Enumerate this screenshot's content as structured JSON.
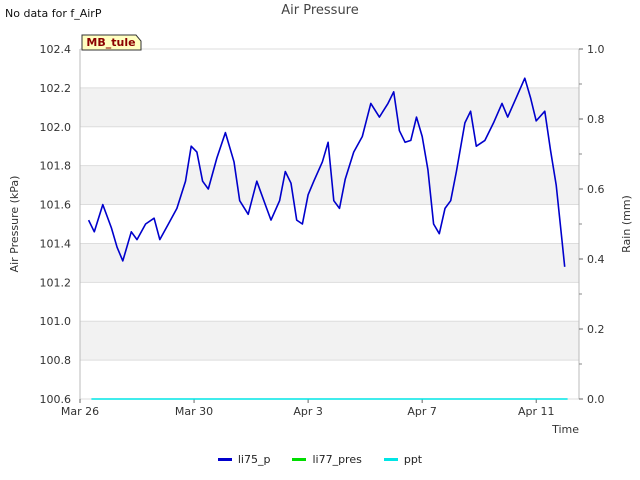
{
  "header": {
    "no_data": "No data for f_AirP"
  },
  "chart_data": {
    "type": "line",
    "title": "Air Pressure",
    "station_label": "MB_tule",
    "xlabel": "Time",
    "ylabel": "Air Pressure (kPa)",
    "y2label": "Rain (mm)",
    "x_range_days": [
      0,
      17.5
    ],
    "x_tick_days": [
      0,
      4,
      8,
      12,
      16
    ],
    "x_tick_labels": [
      "Mar 26",
      "Mar 30",
      "Apr 3",
      "Apr 7",
      "Apr 11"
    ],
    "ylim": [
      100.6,
      102.4
    ],
    "y_ticks": [
      100.6,
      100.8,
      101.0,
      101.2,
      101.4,
      101.6,
      101.8,
      102.0,
      102.2,
      102.4
    ],
    "y_tick_labels": [
      "100.6",
      "100.8",
      "101.0",
      "101.2",
      "101.4",
      "101.6",
      "101.8",
      "102.0",
      "102.2",
      "102.4"
    ],
    "y2lim": [
      0.0,
      1.0
    ],
    "y2_ticks": [
      0.0,
      0.2,
      0.4,
      0.6,
      0.8,
      1.0
    ],
    "y2_tick_labels": [
      "0.0",
      "0.2",
      "0.4",
      "0.6",
      "0.8",
      "1.0"
    ],
    "series": [
      {
        "name": "li75_p",
        "color": "#0000cc",
        "axis": "left",
        "points": [
          [
            0.3,
            101.52
          ],
          [
            0.5,
            101.46
          ],
          [
            0.8,
            101.6
          ],
          [
            1.1,
            101.48
          ],
          [
            1.3,
            101.38
          ],
          [
            1.5,
            101.31
          ],
          [
            1.8,
            101.46
          ],
          [
            2.0,
            101.42
          ],
          [
            2.3,
            101.5
          ],
          [
            2.6,
            101.53
          ],
          [
            2.8,
            101.42
          ],
          [
            3.1,
            101.5
          ],
          [
            3.4,
            101.58
          ],
          [
            3.7,
            101.72
          ],
          [
            3.9,
            101.9
          ],
          [
            4.1,
            101.87
          ],
          [
            4.3,
            101.72
          ],
          [
            4.5,
            101.68
          ],
          [
            4.8,
            101.84
          ],
          [
            5.1,
            101.97
          ],
          [
            5.4,
            101.82
          ],
          [
            5.6,
            101.62
          ],
          [
            5.9,
            101.55
          ],
          [
            6.2,
            101.72
          ],
          [
            6.5,
            101.6
          ],
          [
            6.7,
            101.52
          ],
          [
            7.0,
            101.62
          ],
          [
            7.2,
            101.77
          ],
          [
            7.4,
            101.71
          ],
          [
            7.6,
            101.52
          ],
          [
            7.8,
            101.5
          ],
          [
            8.0,
            101.65
          ],
          [
            8.2,
            101.72
          ],
          [
            8.5,
            101.82
          ],
          [
            8.7,
            101.92
          ],
          [
            8.9,
            101.62
          ],
          [
            9.1,
            101.58
          ],
          [
            9.3,
            101.73
          ],
          [
            9.6,
            101.87
          ],
          [
            9.9,
            101.95
          ],
          [
            10.2,
            102.12
          ],
          [
            10.5,
            102.05
          ],
          [
            10.8,
            102.12
          ],
          [
            11.0,
            102.18
          ],
          [
            11.2,
            101.98
          ],
          [
            11.4,
            101.92
          ],
          [
            11.6,
            101.93
          ],
          [
            11.8,
            102.05
          ],
          [
            12.0,
            101.95
          ],
          [
            12.2,
            101.78
          ],
          [
            12.4,
            101.5
          ],
          [
            12.6,
            101.45
          ],
          [
            12.8,
            101.58
          ],
          [
            13.0,
            101.62
          ],
          [
            13.2,
            101.77
          ],
          [
            13.5,
            102.02
          ],
          [
            13.7,
            102.08
          ],
          [
            13.9,
            101.9
          ],
          [
            14.2,
            101.93
          ],
          [
            14.5,
            102.02
          ],
          [
            14.8,
            102.12
          ],
          [
            15.0,
            102.05
          ],
          [
            15.3,
            102.15
          ],
          [
            15.6,
            102.25
          ],
          [
            15.8,
            102.15
          ],
          [
            16.0,
            102.03
          ],
          [
            16.3,
            102.08
          ],
          [
            16.5,
            101.88
          ],
          [
            16.7,
            101.7
          ],
          [
            16.9,
            101.42
          ],
          [
            17.0,
            101.28
          ]
        ],
        "points_b": []
      }
    ],
    "rain": {
      "name": "ppt",
      "color": "#00e5e5",
      "value": 0.0
    }
  },
  "legend": [
    {
      "label": "li75_p",
      "color": "#0000cc"
    },
    {
      "label": "li77_pres",
      "color": "#00dd00"
    },
    {
      "label": "ppt",
      "color": "#00e5e5"
    }
  ]
}
